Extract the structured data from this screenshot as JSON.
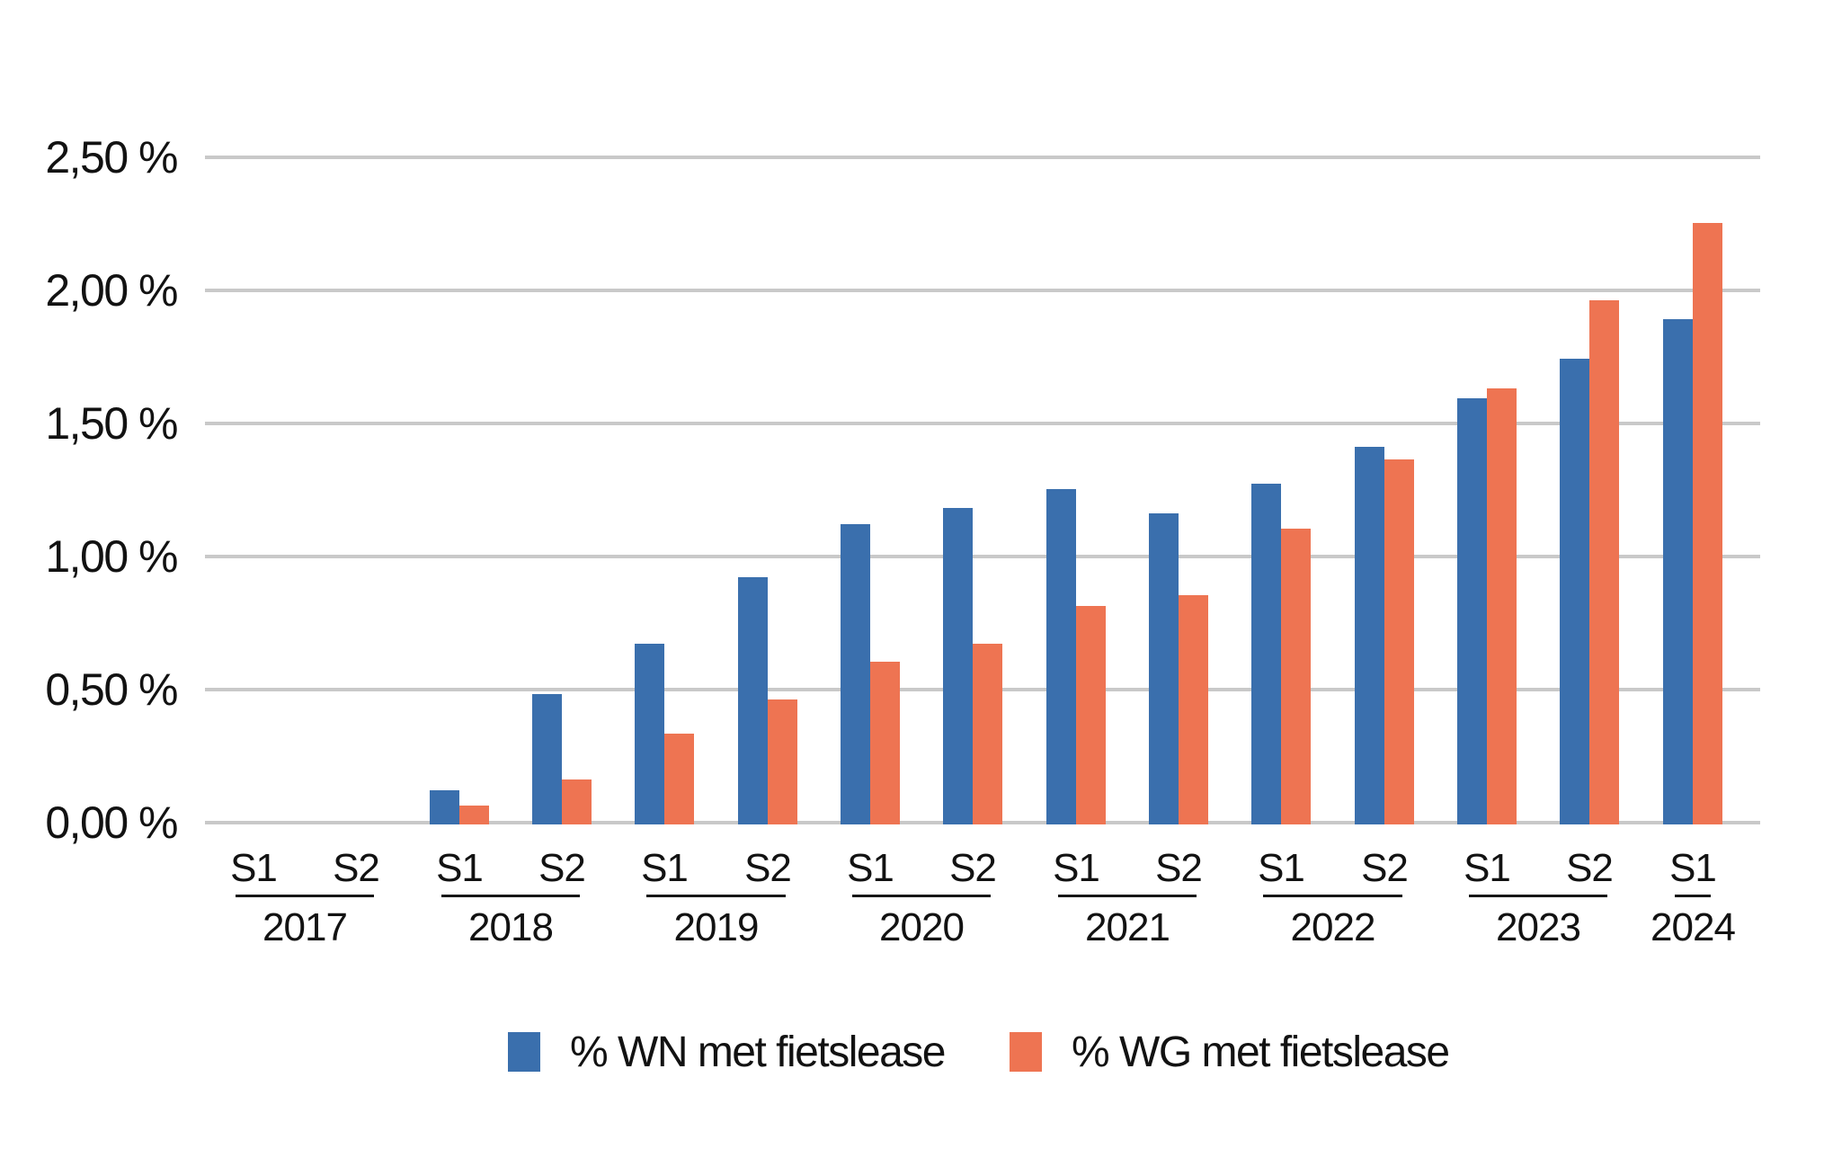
{
  "chart_data": {
    "type": "bar",
    "title": "",
    "unit": "%",
    "groups": [
      {
        "year": "2017",
        "semesters": [
          "S1",
          "S2"
        ]
      },
      {
        "year": "2018",
        "semesters": [
          "S1",
          "S2"
        ]
      },
      {
        "year": "2019",
        "semesters": [
          "S1",
          "S2"
        ]
      },
      {
        "year": "2020",
        "semesters": [
          "S1",
          "S2"
        ]
      },
      {
        "year": "2021",
        "semesters": [
          "S1",
          "S2"
        ]
      },
      {
        "year": "2022",
        "semesters": [
          "S1",
          "S2"
        ]
      },
      {
        "year": "2023",
        "semesters": [
          "S1",
          "S2"
        ]
      },
      {
        "year": "2024",
        "semesters": [
          "S1"
        ]
      }
    ],
    "series": [
      {
        "name": "% WN met fietslease",
        "color": "#3A6FAD",
        "values": [
          0.0,
          0.0,
          0.13,
          0.49,
          0.68,
          0.93,
          1.13,
          1.19,
          1.26,
          1.17,
          1.28,
          1.42,
          1.6,
          1.75,
          1.9
        ]
      },
      {
        "name": "% WG met fietslease",
        "color": "#EE7452",
        "values": [
          0.0,
          0.0,
          0.07,
          0.17,
          0.34,
          0.47,
          0.61,
          0.68,
          0.82,
          0.86,
          1.11,
          1.37,
          1.64,
          1.97,
          2.26
        ]
      }
    ],
    "ylim": [
      0,
      2.5
    ],
    "ytick_step": 0.5,
    "yticks": [
      {
        "value": 0.0,
        "label": "0,00 %"
      },
      {
        "value": 0.5,
        "label": "0,50 %"
      },
      {
        "value": 1.0,
        "label": "1,00 %"
      },
      {
        "value": 1.5,
        "label": "1,50 %"
      },
      {
        "value": 2.0,
        "label": "2,00 %"
      },
      {
        "value": 2.5,
        "label": "2,50 %"
      }
    ],
    "grid": true,
    "gridline_color": "#C9C9C9",
    "axis_text_color": "#121212",
    "legend_position": "bottom"
  }
}
